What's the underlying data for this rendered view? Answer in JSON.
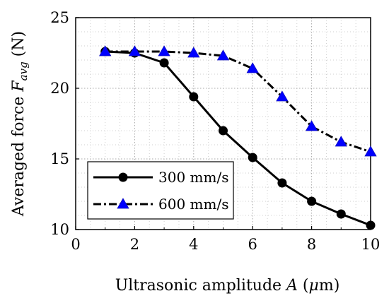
{
  "chart_data": {
    "type": "line",
    "xlabel": "Ultrasonic amplitude A (μm)",
    "xlabel_parts": {
      "text": "Ultrasonic amplitude ",
      "var": "A",
      "unit_open": " (",
      "mu": "μ",
      "unit_rest": "m)"
    },
    "ylabel": "Averaged force F_avg (N)",
    "ylabel_parts": {
      "text": "Averaged force ",
      "var": "F",
      "sub": "avg",
      "unit": " (N)"
    },
    "xlim": [
      0,
      10
    ],
    "ylim": [
      10,
      25
    ],
    "xticks": [
      0,
      2,
      4,
      6,
      8,
      10
    ],
    "yticks": [
      10,
      15,
      20,
      25
    ],
    "grid": true,
    "legend_position": "bottom-left",
    "x": [
      1,
      2,
      3,
      4,
      5,
      6,
      7,
      8,
      9,
      10
    ],
    "series": [
      {
        "name": "300 mm/s",
        "values": [
          22.6,
          22.5,
          21.8,
          19.4,
          17.0,
          15.1,
          13.3,
          12.0,
          11.1,
          10.3
        ],
        "color": "#000000",
        "marker": "circle",
        "line": "solid"
      },
      {
        "name": "600 mm/s",
        "values": [
          22.6,
          22.6,
          22.6,
          22.5,
          22.3,
          21.4,
          19.4,
          17.3,
          16.2,
          15.5
        ],
        "color": "#000000",
        "marker_color": "#0000ff",
        "marker": "triangle",
        "line": "dashdot"
      }
    ]
  }
}
